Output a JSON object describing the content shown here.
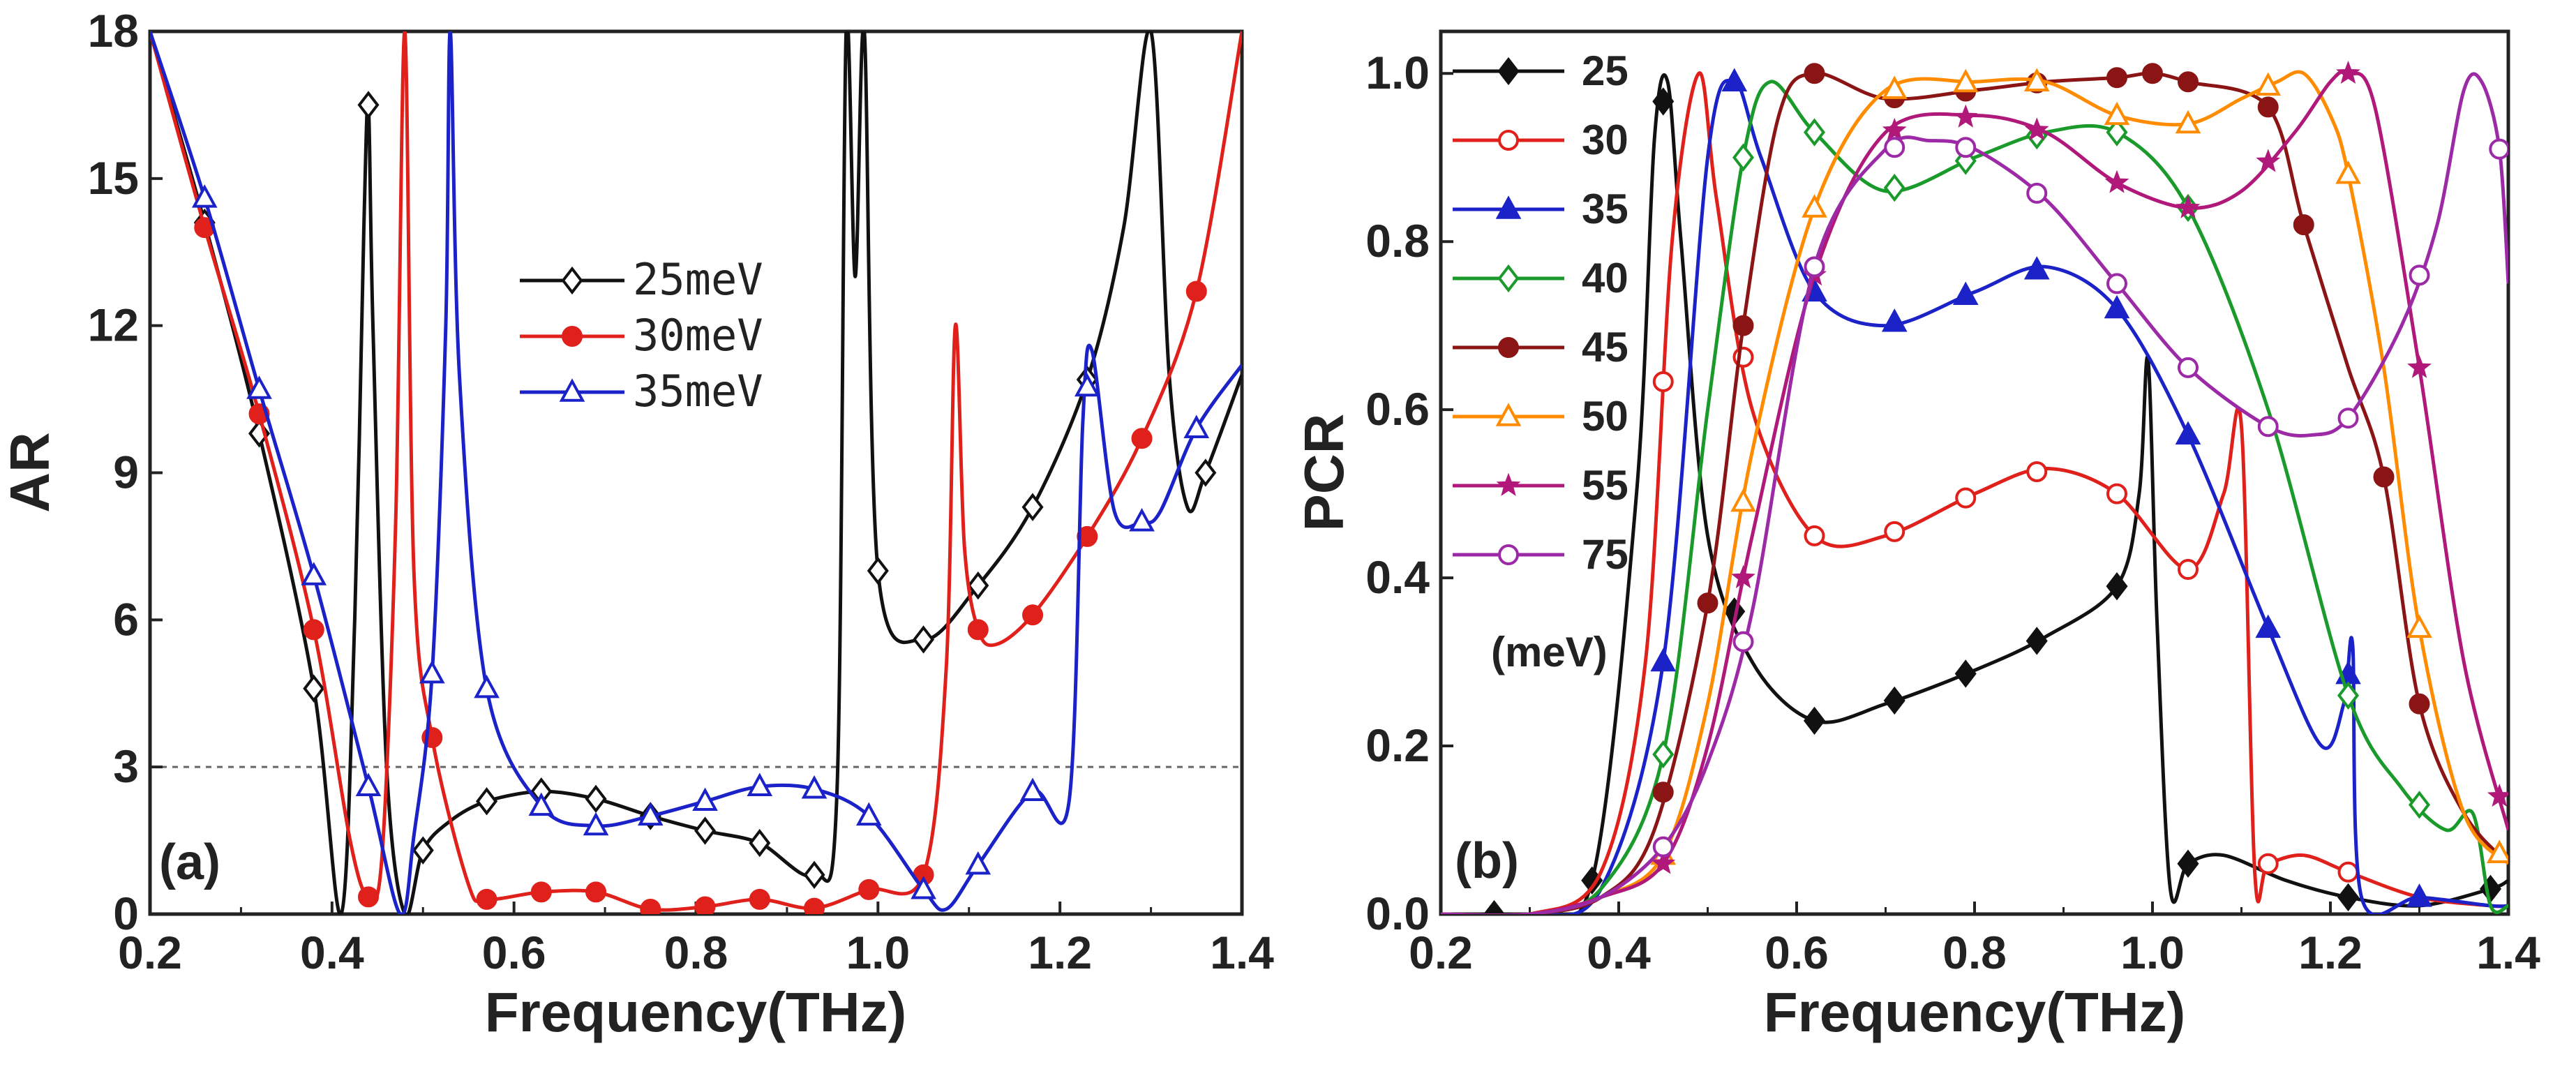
{
  "chart_data": [
    {
      "type": "line",
      "panel_label": "(a)",
      "xlabel": "Frequency(THz)",
      "ylabel": "AR",
      "xlim": [
        0.2,
        1.4
      ],
      "ylim": [
        0,
        18
      ],
      "xticks": [
        "0.2",
        "0.4",
        "0.6",
        "0.8",
        "1.0",
        "1.2",
        "1.4"
      ],
      "yticks": [
        "0",
        "3",
        "6",
        "9",
        "12",
        "15",
        "18"
      ],
      "reference_line": {
        "y": 3,
        "style": "dotted"
      },
      "legend_position": "upper-center",
      "series": [
        {
          "name": "25meV",
          "color": "#111111",
          "marker": "diamond-open",
          "x": [
            0.2,
            0.26,
            0.32,
            0.38,
            0.41,
            0.425,
            0.435,
            0.44,
            0.445,
            0.46,
            0.48,
            0.5,
            0.53,
            0.57,
            0.63,
            0.69,
            0.75,
            0.81,
            0.87,
            0.93,
            0.955,
            0.965,
            0.975,
            0.985,
            1.0,
            1.05,
            1.11,
            1.17,
            1.23,
            1.27,
            1.3,
            1.32,
            1.34,
            1.36,
            1.4
          ],
          "y": [
            18,
            14.1,
            9.8,
            4.6,
            0,
            6,
            14,
            16.5,
            12,
            3,
            0,
            1.3,
            1.9,
            2.3,
            2.5,
            2.35,
            2.0,
            1.7,
            1.45,
            0.8,
            2.5,
            18,
            13,
            18,
            7.0,
            5.6,
            6.7,
            8.3,
            10.9,
            14,
            18,
            11,
            8.3,
            9.0,
            11.0
          ],
          "marker_x": [
            0.26,
            0.32,
            0.38,
            0.44,
            0.5,
            0.57,
            0.63,
            0.69,
            0.75,
            0.81,
            0.87,
            0.93,
            1.0,
            1.05,
            1.11,
            1.17,
            1.23,
            1.36
          ]
        },
        {
          "name": "30meV",
          "color": "#e0201b",
          "marker": "circle-filled",
          "x": [
            0.2,
            0.26,
            0.32,
            0.38,
            0.42,
            0.44,
            0.455,
            0.47,
            0.48,
            0.49,
            0.51,
            0.55,
            0.57,
            0.63,
            0.69,
            0.75,
            0.81,
            0.87,
            0.93,
            0.99,
            1.05,
            1.075,
            1.085,
            1.095,
            1.11,
            1.13,
            1.17,
            1.23,
            1.29,
            1.35,
            1.4
          ],
          "y": [
            18,
            14.0,
            10.2,
            5.8,
            1.5,
            0.35,
            1.2,
            8,
            18,
            7,
            3.6,
            0.6,
            0.3,
            0.45,
            0.45,
            0.1,
            0.15,
            0.3,
            0.12,
            0.5,
            0.8,
            5,
            12.0,
            7.5,
            5.8,
            5.5,
            6.1,
            7.7,
            9.7,
            12.7,
            18
          ],
          "marker_x": [
            0.26,
            0.32,
            0.38,
            0.44,
            0.51,
            0.57,
            0.63,
            0.69,
            0.75,
            0.81,
            0.87,
            0.93,
            0.99,
            1.05,
            1.11,
            1.17,
            1.23,
            1.29,
            1.35
          ]
        },
        {
          "name": "35meV",
          "color": "#1a22c8",
          "marker": "triangle-open",
          "x": [
            0.2,
            0.26,
            0.32,
            0.38,
            0.44,
            0.475,
            0.49,
            0.51,
            0.525,
            0.53,
            0.54,
            0.57,
            0.63,
            0.69,
            0.75,
            0.81,
            0.87,
            0.93,
            0.99,
            1.05,
            1.075,
            1.11,
            1.17,
            1.21,
            1.225,
            1.235,
            1.26,
            1.29,
            1.31,
            1.35,
            1.4
          ],
          "y": [
            18,
            14.6,
            10.7,
            6.9,
            2.6,
            0,
            1.6,
            4.9,
            12,
            18,
            11,
            4.6,
            2.2,
            1.8,
            2.0,
            2.3,
            2.6,
            2.55,
            2.0,
            0.5,
            0.1,
            1.0,
            2.5,
            2.3,
            10,
            11.5,
            8.2,
            8.0,
            8.2,
            9.9,
            11.2
          ],
          "marker_x": [
            0.26,
            0.32,
            0.38,
            0.44,
            0.51,
            0.57,
            0.63,
            0.69,
            0.75,
            0.81,
            0.87,
            0.93,
            0.99,
            1.05,
            1.11,
            1.17,
            1.23,
            1.29,
            1.35
          ]
        }
      ]
    },
    {
      "type": "line",
      "panel_label": "(b)",
      "xlabel": "Frequency(THz)",
      "ylabel": "PCR",
      "xlim": [
        0.2,
        1.4
      ],
      "ylim": [
        0,
        1.05
      ],
      "xticks": [
        "0.2",
        "0.4",
        "0.6",
        "0.8",
        "1.0",
        "1.2",
        "1.4"
      ],
      "yticks": [
        "0.0",
        "0.2",
        "0.4",
        "0.6",
        "0.8",
        "1.0"
      ],
      "legend_position": "upper-left",
      "legend_unit": "(meV)",
      "series": [
        {
          "name": "25",
          "color": "#111111",
          "marker": "diamond-filled",
          "x": [
            0.2,
            0.3,
            0.37,
            0.42,
            0.44,
            0.455,
            0.47,
            0.5,
            0.55,
            0.62,
            0.7,
            0.8,
            0.88,
            0.96,
            0.985,
            0.995,
            1.005,
            1.02,
            1.04,
            1.08,
            1.15,
            1.22,
            1.3,
            1.38,
            1.4
          ],
          "y": [
            0,
            0,
            0.04,
            0.5,
            0.92,
            0.99,
            0.8,
            0.45,
            0.3,
            0.23,
            0.25,
            0.29,
            0.33,
            0.39,
            0.5,
            0.66,
            0.35,
            0.03,
            0.06,
            0.07,
            0.04,
            0.02,
            0.01,
            0.03,
            0.04
          ],
          "marker_x": [
            0.26,
            0.37,
            0.45,
            0.53,
            0.62,
            0.71,
            0.79,
            0.87,
            0.96,
            1.04,
            1.22,
            1.38
          ]
        },
        {
          "name": "30",
          "color": "#e0201b",
          "marker": "circle-open",
          "x": [
            0.2,
            0.3,
            0.38,
            0.43,
            0.46,
            0.49,
            0.51,
            0.55,
            0.62,
            0.7,
            0.8,
            0.88,
            0.96,
            1.04,
            1.08,
            1.1,
            1.115,
            1.13,
            1.17,
            1.22,
            1.3,
            1.38,
            1.4
          ],
          "y": [
            0,
            0,
            0.05,
            0.3,
            0.8,
            1.0,
            0.85,
            0.6,
            0.45,
            0.45,
            0.5,
            0.53,
            0.5,
            0.41,
            0.5,
            0.58,
            0.05,
            0.06,
            0.07,
            0.05,
            0.02,
            0.01,
            0.01
          ],
          "marker_x": [
            0.45,
            0.54,
            0.62,
            0.71,
            0.79,
            0.87,
            0.96,
            1.04,
            1.13,
            1.22
          ]
        },
        {
          "name": "35",
          "color": "#1a22c8",
          "marker": "triangle-filled",
          "x": [
            0.2,
            0.3,
            0.38,
            0.45,
            0.5,
            0.53,
            0.56,
            0.62,
            0.7,
            0.8,
            0.88,
            0.96,
            1.04,
            1.13,
            1.19,
            1.215,
            1.225,
            1.235,
            1.3,
            1.38,
            1.4
          ],
          "y": [
            0,
            0,
            0.03,
            0.3,
            0.9,
            0.99,
            0.9,
            0.74,
            0.7,
            0.74,
            0.77,
            0.72,
            0.57,
            0.34,
            0.2,
            0.25,
            0.32,
            0.02,
            0.02,
            0.01,
            0.01
          ],
          "marker_x": [
            0.45,
            0.53,
            0.62,
            0.71,
            0.79,
            0.87,
            0.96,
            1.04,
            1.13,
            1.22,
            1.3
          ]
        },
        {
          "name": "40",
          "color": "#1a9a2a",
          "marker": "diamond-open",
          "x": [
            0.2,
            0.3,
            0.38,
            0.45,
            0.5,
            0.54,
            0.57,
            0.62,
            0.7,
            0.8,
            0.88,
            0.96,
            1.04,
            1.13,
            1.22,
            1.28,
            1.33,
            1.36,
            1.38,
            1.4
          ],
          "y": [
            0,
            0,
            0.03,
            0.19,
            0.6,
            0.9,
            0.99,
            0.93,
            0.86,
            0.9,
            0.93,
            0.93,
            0.84,
            0.6,
            0.26,
            0.15,
            0.1,
            0.12,
            0.01,
            0.01
          ],
          "marker_x": [
            0.45,
            0.54,
            0.62,
            0.71,
            0.79,
            0.87,
            0.96,
            1.04,
            1.22,
            1.3
          ]
        },
        {
          "name": "45",
          "color": "#8b1414",
          "marker": "circle-filled",
          "x": [
            0.2,
            0.3,
            0.38,
            0.44,
            0.5,
            0.54,
            0.58,
            0.62,
            0.7,
            0.8,
            0.88,
            0.96,
            1.0,
            1.04,
            1.13,
            1.17,
            1.22,
            1.26,
            1.3,
            1.35,
            1.4
          ],
          "y": [
            0,
            0,
            0.02,
            0.1,
            0.37,
            0.7,
            0.95,
            1.0,
            0.97,
            0.98,
            0.99,
            0.995,
            1.0,
            0.99,
            0.96,
            0.82,
            0.65,
            0.52,
            0.25,
            0.12,
            0.06
          ],
          "marker_x": [
            0.45,
            0.5,
            0.54,
            0.62,
            0.71,
            0.79,
            0.87,
            0.96,
            1.0,
            1.04,
            1.13,
            1.17,
            1.26,
            1.3
          ]
        },
        {
          "name": "50",
          "color": "#ff8c00",
          "marker": "triangle-open",
          "x": [
            0.2,
            0.3,
            0.38,
            0.45,
            0.5,
            0.55,
            0.62,
            0.7,
            0.8,
            0.88,
            0.96,
            1.04,
            1.1,
            1.14,
            1.17,
            1.2,
            1.22,
            1.26,
            1.3,
            1.35,
            1.4
          ],
          "y": [
            0,
            0,
            0.02,
            0.07,
            0.25,
            0.55,
            0.84,
            0.98,
            0.99,
            0.99,
            0.95,
            0.94,
            0.97,
            0.99,
            1.0,
            0.95,
            0.88,
            0.65,
            0.34,
            0.12,
            0.06
          ],
          "marker_x": [
            0.45,
            0.54,
            0.62,
            0.71,
            0.79,
            0.87,
            0.96,
            1.04,
            1.13,
            1.22,
            1.3,
            1.39
          ]
        },
        {
          "name": "55",
          "color": "#b0197a",
          "marker": "star",
          "x": [
            0.2,
            0.3,
            0.38,
            0.45,
            0.5,
            0.55,
            0.62,
            0.7,
            0.8,
            0.88,
            0.96,
            1.04,
            1.1,
            1.16,
            1.2,
            1.22,
            1.25,
            1.3,
            1.35,
            1.4
          ],
          "y": [
            0,
            0,
            0.02,
            0.06,
            0.2,
            0.45,
            0.76,
            0.93,
            0.95,
            0.93,
            0.87,
            0.84,
            0.86,
            0.93,
            0.99,
            1.0,
            0.96,
            0.65,
            0.3,
            0.1
          ],
          "marker_x": [
            0.45,
            0.54,
            0.62,
            0.71,
            0.79,
            0.87,
            0.96,
            1.04,
            1.13,
            1.22,
            1.3,
            1.39
          ]
        },
        {
          "name": "75",
          "color": "#9c2aa6",
          "marker": "circle-open",
          "x": [
            0.2,
            0.3,
            0.38,
            0.45,
            0.5,
            0.55,
            0.62,
            0.7,
            0.75,
            0.8,
            0.88,
            0.96,
            1.04,
            1.13,
            1.18,
            1.22,
            1.28,
            1.32,
            1.35,
            1.37,
            1.39,
            1.4
          ],
          "y": [
            0,
            0,
            0.02,
            0.08,
            0.18,
            0.36,
            0.77,
            0.91,
            0.92,
            0.91,
            0.85,
            0.75,
            0.65,
            0.58,
            0.57,
            0.59,
            0.7,
            0.82,
            0.98,
            0.99,
            0.91,
            0.75
          ],
          "marker_x": [
            0.45,
            0.54,
            0.62,
            0.71,
            0.79,
            0.87,
            0.96,
            1.04,
            1.13,
            1.22,
            1.3,
            1.39
          ]
        }
      ]
    }
  ]
}
